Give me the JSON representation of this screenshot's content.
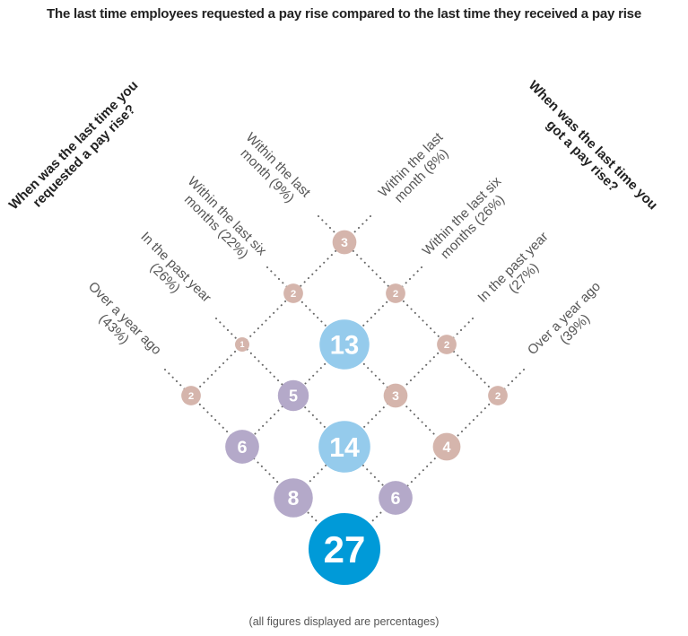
{
  "title": "The last time employees requested a pay rise compared to the last time they received a pay rise",
  "note": "(all figures displayed are percentages)",
  "left_axis": {
    "title_lines": [
      "When was the last time you",
      "requested a pay rise?"
    ],
    "categories": [
      {
        "lines": [
          "Within the last",
          "month (9%)"
        ]
      },
      {
        "lines": [
          "Within the last six",
          "months (22%)"
        ]
      },
      {
        "lines": [
          "In the past year",
          "(26%)"
        ]
      },
      {
        "lines": [
          "Over a year ago",
          "(43%)"
        ]
      }
    ]
  },
  "right_axis": {
    "title_lines": [
      "When was the last time you",
      "got a pay rise?"
    ],
    "categories": [
      {
        "lines": [
          "Within the last",
          "month (8%)"
        ]
      },
      {
        "lines": [
          "Within the last six",
          "months (26%)"
        ]
      },
      {
        "lines": [
          "In the past year",
          "(27%)"
        ]
      },
      {
        "lines": [
          "Over a year ago",
          "(39%)"
        ]
      }
    ]
  },
  "colors": {
    "pink": "#d5b5ac",
    "purple": "#b4a9c9",
    "light_blue": "#95cbec",
    "blue": "#009ad8",
    "dots": "#666666"
  },
  "chart_data": {
    "type": "matrix-bubble",
    "rows_label": "When was the last time you requested a pay rise?",
    "cols_label": "When was the last time you got a pay rise?",
    "cells": [
      {
        "requested": 0,
        "received": 0,
        "value": 3,
        "color": "pink"
      },
      {
        "requested": 1,
        "received": 0,
        "value": 2,
        "color": "pink"
      },
      {
        "requested": 0,
        "received": 1,
        "value": 2,
        "color": "pink"
      },
      {
        "requested": 2,
        "received": 0,
        "value": 1,
        "color": "pink"
      },
      {
        "requested": 1,
        "received": 1,
        "value": 13,
        "color": "light_blue"
      },
      {
        "requested": 0,
        "received": 2,
        "value": 2,
        "color": "pink"
      },
      {
        "requested": 3,
        "received": 0,
        "value": 2,
        "color": "pink"
      },
      {
        "requested": 2,
        "received": 1,
        "value": 5,
        "color": "purple"
      },
      {
        "requested": 1,
        "received": 2,
        "value": 3,
        "color": "pink"
      },
      {
        "requested": 0,
        "received": 3,
        "value": 2,
        "color": "pink"
      },
      {
        "requested": 3,
        "received": 1,
        "value": 6,
        "color": "purple"
      },
      {
        "requested": 2,
        "received": 2,
        "value": 14,
        "color": "light_blue"
      },
      {
        "requested": 1,
        "received": 3,
        "value": 4,
        "color": "pink"
      },
      {
        "requested": 3,
        "received": 2,
        "value": 8,
        "color": "purple"
      },
      {
        "requested": 2,
        "received": 3,
        "value": 6,
        "color": "purple"
      },
      {
        "requested": 3,
        "received": 3,
        "value": 27,
        "color": "blue"
      }
    ]
  }
}
